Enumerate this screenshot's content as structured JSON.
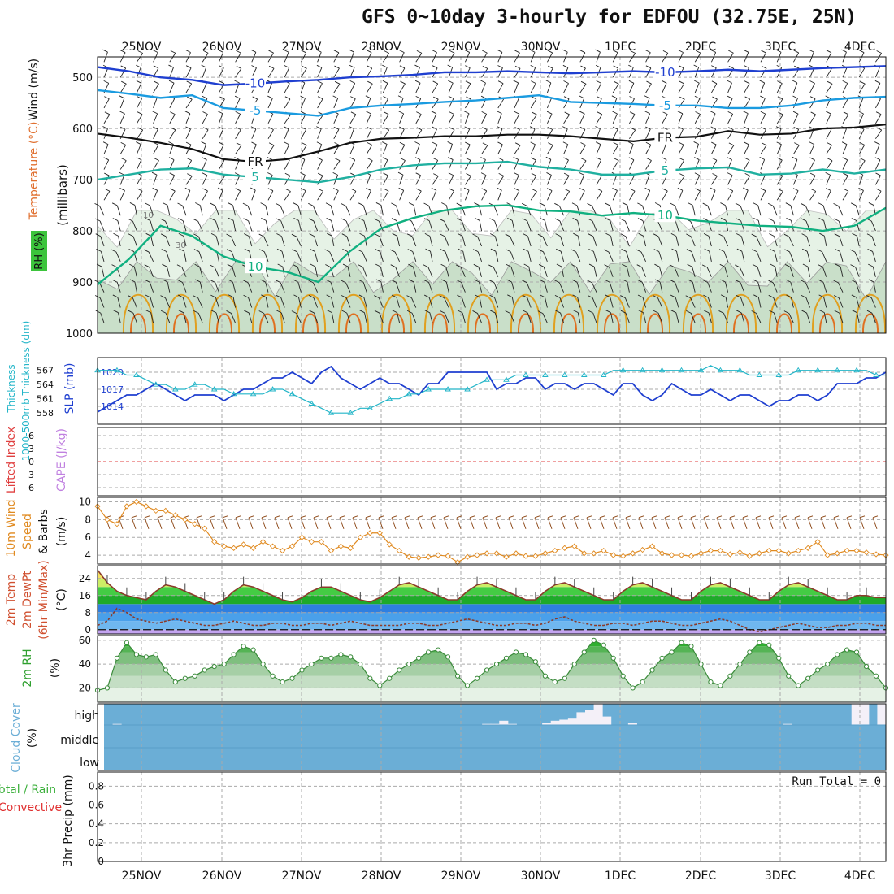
{
  "title": "GFS 0~10day 3-hourly for EDFOU (32.75E, 25N)",
  "run_total_text": "Run Total = 0",
  "colors": {
    "slp": "#1f3fd0",
    "thickness": "#22b5c8",
    "lifted_index": "#e04040",
    "cape": "#c080e0",
    "wind": "#e08a20",
    "wind_barb": "#8b4513",
    "temp_line": "#8b3a2a",
    "dewpt_line": "#8b3a2a",
    "rh_fill": "#3cb03c",
    "cloud": "#6baed6",
    "cloud_bg": "#f4f0f8",
    "precip_total": "#3cb03c",
    "precip_conv": "#e03030",
    "grid": "#aaaaaa"
  },
  "chart_data": [
    {
      "id": "upper_air",
      "type": "heatmap",
      "ylabel": "(millibars)",
      "side_labels": [
        "Wind (m/s)",
        "Temperature (°C)",
        "RH (%)"
      ],
      "yticks": [
        "500",
        "600",
        "700",
        "800",
        "900",
        "1000"
      ],
      "ylim": [
        1000,
        460
      ],
      "x_labels": [
        "25NOV",
        "26NOV",
        "27NOV",
        "28NOV",
        "29NOV",
        "30NOV",
        "1DEC",
        "2DEC",
        "3DEC",
        "4DEC"
      ],
      "isotherms": [
        {
          "label": "-10",
          "color": "#1f3fd0",
          "level_mb": [
            480,
            488,
            500,
            505,
            515,
            512,
            508,
            505,
            500,
            498,
            495,
            490,
            490,
            488,
            490,
            492,
            490,
            488,
            490,
            488,
            485,
            488,
            485,
            482,
            480,
            478
          ]
        },
        {
          "label": "-5",
          "color": "#1a9be0",
          "level_mb": [
            525,
            532,
            540,
            535,
            560,
            565,
            570,
            575,
            560,
            555,
            552,
            548,
            545,
            540,
            535,
            548,
            550,
            552,
            555,
            555,
            560,
            560,
            555,
            545,
            540,
            538
          ]
        },
        {
          "label": "FR",
          "color": "#111111",
          "level_mb": [
            610,
            618,
            628,
            640,
            660,
            665,
            660,
            645,
            628,
            620,
            618,
            615,
            615,
            612,
            612,
            615,
            620,
            625,
            618,
            616,
            605,
            612,
            610,
            600,
            598,
            592
          ]
        },
        {
          "label": "5",
          "color": "#20b0a0",
          "level_mb": [
            700,
            690,
            680,
            678,
            690,
            695,
            700,
            705,
            695,
            680,
            672,
            668,
            668,
            665,
            675,
            680,
            690,
            690,
            682,
            678,
            676,
            690,
            688,
            680,
            688,
            680
          ]
        },
        {
          "label": "10",
          "color": "#10b080",
          "level_mb": [
            905,
            855,
            790,
            810,
            850,
            870,
            880,
            900,
            840,
            795,
            775,
            760,
            752,
            750,
            760,
            762,
            770,
            765,
            770,
            780,
            785,
            790,
            792,
            800,
            790,
            755
          ]
        }
      ],
      "rh_levels": [
        "10",
        "30"
      ]
    },
    {
      "id": "slp_thickness",
      "type": "line",
      "series": [
        {
          "name": "SLP (mb)",
          "axis": "right",
          "values": [
            1013,
            1014,
            1015,
            1016,
            1016,
            1017,
            1018,
            1017,
            1016,
            1015,
            1016,
            1016,
            1016,
            1015,
            1016,
            1017,
            1017,
            1018,
            1019,
            1019,
            1020,
            1019,
            1018,
            1020,
            1021,
            1019,
            1018,
            1017,
            1018,
            1019,
            1018,
            1018,
            1017,
            1016,
            1018,
            1018,
            1020,
            1020,
            1020,
            1020,
            1020,
            1017,
            1018,
            1018,
            1019,
            1019,
            1017,
            1018,
            1018,
            1017,
            1018,
            1018,
            1017,
            1016,
            1018,
            1018,
            1016,
            1015,
            1016,
            1018,
            1017,
            1016,
            1016,
            1017,
            1016,
            1015,
            1016,
            1016,
            1015,
            1014,
            1015,
            1015,
            1016,
            1016,
            1015,
            1016,
            1018,
            1018,
            1018,
            1019,
            1019,
            1020
          ]
        },
        {
          "name": "1000-500mb Thickness (dm)",
          "axis": "left",
          "values": [
            567,
            567,
            567,
            566,
            566,
            565,
            564,
            564,
            563,
            563,
            564,
            564,
            563,
            563,
            562,
            562,
            562,
            562,
            563,
            563,
            562,
            561,
            560,
            559,
            558,
            558,
            558,
            559,
            559,
            560,
            561,
            561,
            562,
            562,
            563,
            563,
            563,
            563,
            563,
            564,
            565,
            565,
            565,
            566,
            566,
            566,
            566,
            566,
            566,
            566,
            566,
            566,
            566,
            567,
            567,
            567,
            567,
            567,
            567,
            567,
            567,
            567,
            567,
            568,
            567,
            567,
            567,
            566,
            566,
            566,
            566,
            566,
            567,
            567,
            567,
            567,
            567,
            567,
            567,
            567,
            566,
            566
          ]
        }
      ],
      "left_ticks": [
        "558",
        "561",
        "564",
        "567"
      ],
      "right_ticks": [
        "1014",
        "1017",
        "1020"
      ]
    },
    {
      "id": "cape_li",
      "type": "line",
      "ylabel_left": "Lifted Index",
      "ylabel_right": "CAPE (J/kg)",
      "left_ticks": [
        "6",
        "3",
        "0",
        "3",
        "6"
      ],
      "series": [
        {
          "name": "Lifted Index",
          "values": []
        },
        {
          "name": "CAPE (J/kg)",
          "values": []
        }
      ]
    },
    {
      "id": "wind10m",
      "type": "line",
      "ylabel": "10m Wind Speed (m/s) & Barbs",
      "yticks": [
        "4",
        "6",
        "8",
        "10"
      ],
      "ylim": [
        3,
        10.5
      ],
      "series": [
        {
          "name": "10m Wind Speed",
          "values": [
            9.5,
            8,
            7.5,
            9.5,
            10,
            9.5,
            9,
            9,
            8.5,
            8,
            7.5,
            7,
            5.5,
            5,
            4.8,
            5.2,
            4.8,
            5.5,
            5,
            4.5,
            5,
            6,
            5.5,
            5.5,
            4.5,
            5,
            4.8,
            6,
            6.5,
            6.5,
            5.2,
            4.5,
            3.8,
            3.7,
            3.8,
            4,
            3.9,
            3.2,
            3.8,
            4,
            4.2,
            4.2,
            3.8,
            4.2,
            3.9,
            3.9,
            4.2,
            4.5,
            4.8,
            5,
            4.2,
            4.2,
            4.5,
            4,
            3.9,
            4.2,
            4.6,
            5,
            4.2,
            4,
            4,
            3.9,
            4.2,
            4.5,
            4.5,
            4.1,
            4.3,
            3.9,
            4.2,
            4.5,
            4.5,
            4.2,
            4.5,
            4.8,
            5.5,
            4,
            4.2,
            4.5,
            4.5,
            4.3,
            4.1,
            4
          ]
        }
      ]
    },
    {
      "id": "temp2m",
      "type": "area",
      "ylabel": "2m Temp 2m DewPt (6hr Min/Max) (°C)",
      "yticks": [
        "0",
        "8",
        "16",
        "24"
      ],
      "ylim": [
        -2,
        30
      ],
      "series": [
        {
          "name": "2m Temp",
          "values": [
            28,
            22,
            18,
            16,
            15,
            14,
            18,
            21,
            20,
            18,
            16,
            14,
            12,
            14,
            18,
            21,
            20,
            18,
            16,
            14,
            13,
            15,
            18,
            20,
            20,
            18,
            16,
            14,
            13,
            15,
            18,
            21,
            22,
            20,
            18,
            16,
            14,
            14,
            18,
            21,
            22,
            20,
            18,
            16,
            14,
            14,
            18,
            21,
            22,
            20,
            18,
            16,
            14,
            14,
            18,
            21,
            22,
            20,
            18,
            16,
            14,
            14,
            18,
            21,
            22,
            20,
            18,
            16,
            14,
            14,
            18,
            21,
            22,
            20,
            18,
            16,
            14,
            14,
            16,
            16,
            15,
            15
          ]
        },
        {
          "name": "2m DewPt",
          "values": [
            2,
            4,
            10,
            8,
            5,
            4,
            3,
            4,
            5,
            4,
            3,
            2,
            2,
            3,
            4,
            3,
            2,
            2,
            3,
            3,
            2,
            2,
            3,
            3,
            2,
            3,
            4,
            3,
            2,
            2,
            2,
            2,
            3,
            3,
            2,
            2,
            3,
            4,
            5,
            4,
            3,
            2,
            2,
            3,
            3,
            2,
            3,
            5,
            6,
            4,
            3,
            2,
            2,
            3,
            3,
            2,
            3,
            4,
            4,
            3,
            2,
            2,
            3,
            4,
            5,
            4,
            2,
            0,
            -1,
            0,
            1,
            2,
            3,
            2,
            1,
            1,
            2,
            2,
            3,
            3,
            2,
            2
          ]
        }
      ]
    },
    {
      "id": "rh2m",
      "type": "area",
      "ylabel": "2m RH (%)",
      "yticks": [
        "20",
        "40",
        "60"
      ],
      "ylim": [
        8,
        64
      ],
      "series": [
        {
          "name": "2m RH",
          "values": [
            18,
            20,
            45,
            58,
            48,
            46,
            48,
            35,
            25,
            28,
            30,
            35,
            38,
            40,
            48,
            55,
            52,
            40,
            30,
            25,
            28,
            35,
            40,
            45,
            45,
            48,
            46,
            40,
            28,
            22,
            28,
            35,
            40,
            45,
            50,
            52,
            46,
            30,
            22,
            28,
            35,
            40,
            45,
            50,
            48,
            42,
            30,
            25,
            28,
            40,
            50,
            60,
            56,
            45,
            30,
            20,
            25,
            35,
            45,
            50,
            58,
            55,
            40,
            25,
            22,
            30,
            40,
            50,
            58,
            56,
            45,
            30,
            22,
            28,
            35,
            40,
            48,
            52,
            50,
            38,
            30,
            20
          ]
        }
      ]
    },
    {
      "id": "cloud",
      "type": "heatmap",
      "ylabel": "Cloud Cover (%)",
      "y_categories": [
        "high",
        "middle",
        "low"
      ],
      "high_cover_pct": [
        100,
        95,
        100,
        100,
        100,
        100,
        100,
        100,
        100,
        100,
        100,
        100,
        100,
        100,
        100,
        100,
        100,
        100,
        100,
        100,
        100,
        100,
        100,
        100,
        100,
        100,
        100,
        100,
        100,
        100,
        100,
        100,
        100,
        100,
        100,
        100,
        100,
        100,
        100,
        100,
        100,
        100,
        100,
        100,
        95,
        95,
        80,
        95,
        100,
        100,
        100,
        90,
        80,
        75,
        70,
        40,
        30,
        0,
        60,
        100,
        100,
        90,
        100,
        100,
        100,
        100,
        100,
        100,
        100,
        100,
        100,
        100,
        100,
        100,
        100,
        100,
        100,
        100,
        100,
        95,
        100,
        100,
        100,
        100,
        100,
        100,
        100,
        0,
        0,
        100,
        0
      ]
    },
    {
      "id": "precip",
      "type": "bar",
      "ylabel": "3hr Precip (mm)",
      "side_labels": [
        "Total / Rain",
        "Convective"
      ],
      "yticks": [
        "0",
        "0.2",
        "0.4",
        "0.6",
        "0.8"
      ],
      "ylim": [
        0,
        0.95
      ],
      "values": []
    }
  ],
  "x_axis": {
    "labels": [
      "25NOV",
      "26NOV",
      "27NOV",
      "28NOV",
      "29NOV",
      "30NOV",
      "1DEC",
      "2DEC",
      "3DEC",
      "4DEC"
    ]
  }
}
